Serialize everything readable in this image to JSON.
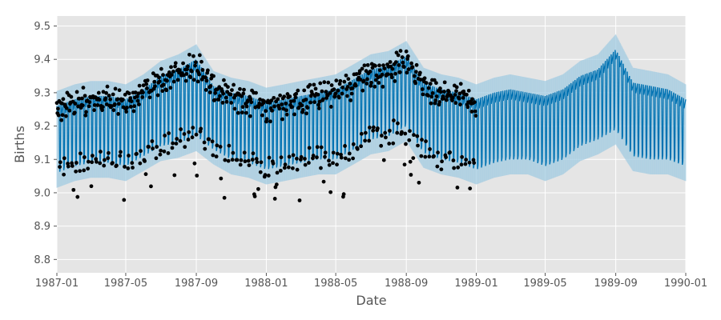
{
  "chart_data": {
    "type": "line",
    "title": "",
    "xlabel": "Date",
    "ylabel": "Births",
    "x_ticks": [
      "1987-01",
      "1987-05",
      "1987-09",
      "1988-01",
      "1988-05",
      "1988-09",
      "1989-01",
      "1989-05",
      "1989-09",
      "1990-01"
    ],
    "y_ticks": [
      "8.8",
      "8.9",
      "9.0",
      "9.1",
      "9.2",
      "9.3",
      "9.4",
      "9.5"
    ],
    "xlim": [
      "1987-01-01",
      "1990-01-01"
    ],
    "ylim": [
      8.76,
      9.53
    ],
    "grid": true,
    "background": "#e5e5e5",
    "colors": {
      "forecast": "#0072b2",
      "uncertainty": "#9ecae1",
      "observed": "#000000",
      "grid": "#ffffff"
    },
    "series": [
      {
        "kind": "forecast_band",
        "note_visual": "weekly oscillating forecast band with uncertainty interval",
        "x": [
          "1987-01-01",
          "1987-02-01",
          "1987-03-01",
          "1987-04-01",
          "1987-05-01",
          "1987-06-01",
          "1987-07-01",
          "1987-08-01",
          "1987-09-01",
          "1987-10-01",
          "1987-11-01",
          "1987-12-01",
          "1988-01-01",
          "1988-02-01",
          "1988-03-01",
          "1988-04-01",
          "1988-05-01",
          "1988-06-01",
          "1988-07-01",
          "1988-08-01",
          "1988-09-01",
          "1988-10-01",
          "1988-11-01",
          "1988-12-01",
          "1989-01-01",
          "1989-02-01",
          "1989-03-01",
          "1989-04-01",
          "1989-05-01",
          "1989-06-01",
          "1989-07-01",
          "1989-08-01",
          "1989-09-01",
          "1989-10-01",
          "1989-11-01",
          "1989-12-01",
          "1990-01-01"
        ],
        "high": [
          9.26,
          9.28,
          9.29,
          9.29,
          9.28,
          9.31,
          9.35,
          9.37,
          9.4,
          9.32,
          9.3,
          9.29,
          9.27,
          9.28,
          9.29,
          9.3,
          9.31,
          9.34,
          9.37,
          9.38,
          9.41,
          9.33,
          9.31,
          9.3,
          9.28,
          9.3,
          9.31,
          9.3,
          9.29,
          9.31,
          9.35,
          9.37,
          9.43,
          9.33,
          9.32,
          9.31,
          9.28
        ],
        "low": [
          9.06,
          9.08,
          9.09,
          9.09,
          9.08,
          9.11,
          9.14,
          9.15,
          9.17,
          9.13,
          9.1,
          9.09,
          9.07,
          9.08,
          9.09,
          9.1,
          9.1,
          9.13,
          9.16,
          9.17,
          9.2,
          9.12,
          9.1,
          9.09,
          9.07,
          9.09,
          9.1,
          9.1,
          9.08,
          9.1,
          9.14,
          9.16,
          9.19,
          9.11,
          9.1,
          9.1,
          9.08
        ]
      }
    ]
  }
}
